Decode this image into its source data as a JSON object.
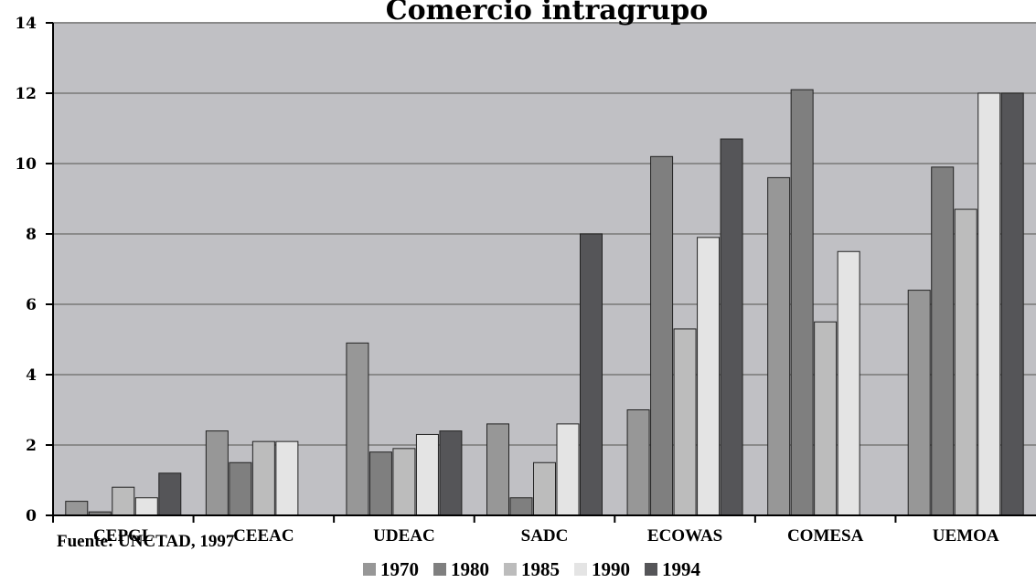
{
  "chart_data": {
    "type": "bar",
    "title": "Comercio intragrupo",
    "categories": [
      "CEPGL",
      "CEEAC",
      "UDEAC",
      "SADC",
      "ECOWAS",
      "COMESA",
      "UEMOA"
    ],
    "series": [
      {
        "name": "1970",
        "color": "#979797",
        "values": [
          0.4,
          2.4,
          4.9,
          2.6,
          3.0,
          9.6,
          6.4
        ]
      },
      {
        "name": "1980",
        "color": "#7f7f7f",
        "values": [
          0.1,
          1.5,
          1.8,
          0.5,
          10.2,
          12.1,
          9.9
        ]
      },
      {
        "name": "1985",
        "color": "#bcbcbc",
        "values": [
          0.8,
          2.1,
          1.9,
          1.5,
          5.3,
          5.5,
          8.7
        ]
      },
      {
        "name": "1990",
        "color": "#e4e4e4",
        "values": [
          0.5,
          2.1,
          2.3,
          2.6,
          7.9,
          7.5,
          12.0
        ]
      },
      {
        "name": "1994",
        "color": "#555558",
        "values": [
          1.2,
          null,
          2.4,
          8.0,
          10.7,
          null,
          12.0
        ]
      }
    ],
    "ylim": [
      0,
      14
    ],
    "yticks": [
      0,
      2,
      4,
      6,
      8,
      10,
      12,
      14
    ],
    "xlabel": "",
    "ylabel": "",
    "grid": true,
    "legend_position": "bottom",
    "plot_background": "#c0c0c4",
    "source_note": "Fuente: UNCTAD, 1997"
  }
}
